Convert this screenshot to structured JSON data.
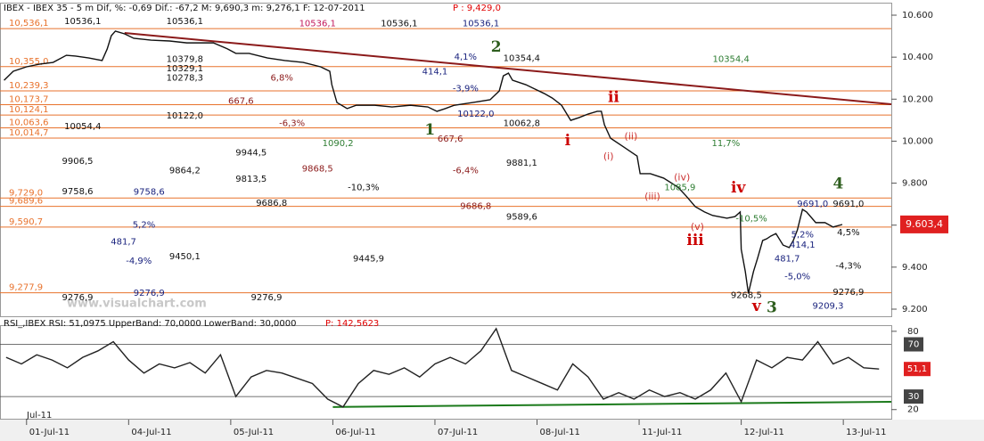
{
  "chart_data": [
    {
      "type": "line",
      "header": "IBEX - IBEX 35 -  5 m Dif, %: -0,69 Dif.: -67,2 M: 9,690,3 m: 9,276,1 F: 12-07-2011",
      "header_price": "P : 9,429,0",
      "watermark": "www.visualchart.com",
      "month_label": "Jul-11",
      "xlim": [
        -0.26,
        8.47
      ],
      "xticks": [
        {
          "value": 0,
          "label": "01-Jul-11"
        },
        {
          "value": 1,
          "label": "04-Jul-11"
        },
        {
          "value": 2,
          "label": "05-Jul-11"
        },
        {
          "value": 3,
          "label": "06-Jul-11"
        },
        {
          "value": 4,
          "label": "07-Jul-11"
        },
        {
          "value": 5,
          "label": "08-Jul-11"
        },
        {
          "value": 6,
          "label": "11-Jul-11"
        },
        {
          "value": 7,
          "label": "12-Jul-11"
        },
        {
          "value": 8,
          "label": "13-Jul-11"
        }
      ],
      "ylim": [
        9166,
        10651
      ],
      "yticks": [
        {
          "value": 9200,
          "label": "9.200"
        },
        {
          "value": 9400,
          "label": "9.400"
        },
        {
          "value": 9600,
          "label": "9.600"
        },
        {
          "value": 9800,
          "label": "9.800"
        },
        {
          "value": 10000,
          "label": "10.000"
        },
        {
          "value": 10200,
          "label": "10.200"
        },
        {
          "value": 10400,
          "label": "10.400"
        },
        {
          "value": 10600,
          "label": "10.600"
        }
      ],
      "series": [
        {
          "color": "#111111",
          "x": [
            -0.22,
            -0.13,
            0,
            0.13,
            0.26,
            0.39,
            0.48,
            0.61,
            0.74,
            0.79,
            0.83,
            0.87,
            0.96,
            1.05,
            1.22,
            1.4,
            1.57,
            1.83,
            1.97,
            2.05,
            2.18,
            2.36,
            2.53,
            2.71,
            2.88,
            2.97,
            2.99,
            3.04,
            3.14,
            3.23,
            3.41,
            3.58,
            3.76,
            3.93,
            4.02,
            4.1,
            4.19,
            4.37,
            4.54,
            4.63,
            4.67,
            4.72,
            4.76,
            4.89,
            4.98,
            5.07,
            5.15,
            5.24,
            5.33,
            5.41,
            5.5,
            5.59,
            5.63,
            5.66,
            5.72,
            5.85,
            5.94,
            5.98,
            6.01,
            6.11,
            6.24,
            6.38,
            6.46,
            6.55,
            6.64,
            6.72,
            6.86,
            6.94,
            6.99,
            7.0,
            7.04,
            7.07,
            7.12,
            7.16,
            7.21,
            7.25,
            7.29,
            7.34,
            7.41,
            7.47,
            7.51,
            7.55,
            7.6,
            7.64,
            7.73,
            7.82,
            7.9,
            7.99
          ],
          "values": [
            10290,
            10333,
            10354,
            10367,
            10375,
            10409,
            10405,
            10396,
            10384,
            10439,
            10502,
            10524,
            10511,
            10490,
            10481,
            10477,
            10468,
            10468,
            10439,
            10418,
            10418,
            10396,
            10384,
            10375,
            10354,
            10333,
            10269,
            10184,
            10155,
            10171,
            10171,
            10163,
            10171,
            10163,
            10142,
            10155,
            10171,
            10184,
            10197,
            10239,
            10311,
            10324,
            10290,
            10269,
            10248,
            10227,
            10205,
            10171,
            10099,
            10112,
            10129,
            10142,
            10142,
            10078,
            10014,
            9972,
            9942,
            9929,
            9845,
            9845,
            9824,
            9781,
            9739,
            9688,
            9663,
            9646,
            9633,
            9641,
            9663,
            9485,
            9379,
            9275,
            9379,
            9442,
            9527,
            9535,
            9548,
            9560,
            9505,
            9493,
            9527,
            9577,
            9675,
            9663,
            9612,
            9612,
            9591,
            9603
          ]
        }
      ],
      "last_price": {
        "value": 9603.4,
        "label": "9.603,4"
      },
      "levels": [
        {
          "value": 10536.1,
          "label": "10,536,1"
        },
        {
          "value": 10355.0,
          "label": "10,355,0"
        },
        {
          "value": 10239.3,
          "label": "10,239,3"
        },
        {
          "value": 10173.7,
          "label": "10,173,7"
        },
        {
          "value": 10124.1,
          "label": "10,124,1"
        },
        {
          "value": 10063.6,
          "label": "10,063,6"
        },
        {
          "value": 10014.7,
          "label": "10,014,7"
        },
        {
          "value": 9729.0,
          "label": "9,729,0"
        },
        {
          "value": 9689.6,
          "label": "9,689,6"
        },
        {
          "value": 9590.7,
          "label": "9,590,7"
        },
        {
          "value": 9277.9,
          "label": "9,277,9"
        }
      ],
      "level_color": "#e8722c",
      "trendline": {
        "x": [
          0.96,
          8.47
        ],
        "values": [
          10515,
          10176
        ],
        "color": "#8b1a1a"
      },
      "annotations": [
        {
          "text": "10536,1",
          "x": 0.55,
          "y": 10570,
          "color": "#111"
        },
        {
          "text": "10536,1",
          "x": 1.55,
          "y": 10570,
          "color": "#111"
        },
        {
          "text": "10379,8",
          "x": 1.55,
          "y": 10390,
          "color": "#111"
        },
        {
          "text": "10329,1",
          "x": 1.55,
          "y": 10345,
          "color": "#111"
        },
        {
          "text": "10278,3",
          "x": 1.55,
          "y": 10300,
          "color": "#111"
        },
        {
          "text": "10122,0",
          "x": 1.55,
          "y": 10120,
          "color": "#111"
        },
        {
          "text": "10054,4",
          "x": 0.55,
          "y": 10070,
          "color": "#111"
        },
        {
          "text": "9906,5",
          "x": 0.5,
          "y": 9905,
          "color": "#111"
        },
        {
          "text": "9758,6",
          "x": 0.5,
          "y": 9760,
          "color": "#111"
        },
        {
          "text": "9276,9",
          "x": 0.5,
          "y": 9255,
          "color": "#111"
        },
        {
          "text": "9276,9",
          "x": 2.35,
          "y": 9255,
          "color": "#111"
        },
        {
          "text": "9450,1",
          "x": 1.55,
          "y": 9450,
          "color": "#111"
        },
        {
          "text": "9864,2",
          "x": 1.55,
          "y": 9860,
          "color": "#111"
        },
        {
          "text": "667,6",
          "x": 2.1,
          "y": 10190,
          "color": "#8b1a1a"
        },
        {
          "text": "9944,5",
          "x": 2.2,
          "y": 9945,
          "color": "#111"
        },
        {
          "text": "9813,5",
          "x": 2.2,
          "y": 9820,
          "color": "#111"
        },
        {
          "text": "9686,8",
          "x": 2.4,
          "y": 9705,
          "color": "#111"
        },
        {
          "text": "-10,3%",
          "x": 3.3,
          "y": 9780,
          "color": "#111"
        },
        {
          "text": "9445,9",
          "x": 3.35,
          "y": 9440,
          "color": "#111"
        },
        {
          "text": "1090,2",
          "x": 3.05,
          "y": 9990,
          "color": "#2e7d32"
        },
        {
          "text": "6,8%",
          "x": 2.5,
          "y": 10300,
          "color": "#8b1a1a"
        },
        {
          "text": "-6,3%",
          "x": 2.6,
          "y": 10085,
          "color": "#8b1a1a"
        },
        {
          "text": "10536,1",
          "x": 2.85,
          "y": 10560,
          "color": "#c2185b"
        },
        {
          "text": "9868,5",
          "x": 2.85,
          "y": 9868,
          "color": "#8b1a1a"
        },
        {
          "text": "10536,1",
          "x": 3.65,
          "y": 10560,
          "color": "#111"
        },
        {
          "text": "414,1",
          "x": 4.0,
          "y": 10330,
          "color": "#1a237e"
        },
        {
          "text": "4,1%",
          "x": 4.3,
          "y": 10400,
          "color": "#1a237e"
        },
        {
          "text": "-3,9%",
          "x": 4.3,
          "y": 10250,
          "color": "#1a237e"
        },
        {
          "text": "10536,1",
          "x": 4.45,
          "y": 10560,
          "color": "#1a237e"
        },
        {
          "text": "10122,0",
          "x": 4.4,
          "y": 10130,
          "color": "#1a237e"
        },
        {
          "text": "10354,4",
          "x": 4.85,
          "y": 10395,
          "color": "#111"
        },
        {
          "text": "667,6",
          "x": 4.15,
          "y": 10010,
          "color": "#8b1a1a"
        },
        {
          "text": "10062,8",
          "x": 4.85,
          "y": 10085,
          "color": "#111"
        },
        {
          "text": "9881,1",
          "x": 4.85,
          "y": 9895,
          "color": "#111"
        },
        {
          "text": "-6,4%",
          "x": 4.3,
          "y": 9860,
          "color": "#8b1a1a"
        },
        {
          "text": "9686,8",
          "x": 4.4,
          "y": 9690,
          "color": "#8b1a1a"
        },
        {
          "text": "9589,6",
          "x": 4.85,
          "y": 9640,
          "color": "#111"
        },
        {
          "text": "481,7",
          "x": 0.95,
          "y": 9520,
          "color": "#1a237e"
        },
        {
          "text": "5,2%",
          "x": 1.15,
          "y": 9600,
          "color": "#1a237e"
        },
        {
          "text": "-4,9%",
          "x": 1.1,
          "y": 9430,
          "color": "#1a237e"
        },
        {
          "text": "9758,6",
          "x": 1.2,
          "y": 9758,
          "color": "#1a237e"
        },
        {
          "text": "9276,9",
          "x": 1.2,
          "y": 9277,
          "color": "#1a237e"
        },
        {
          "text": "10354,4",
          "x": 6.9,
          "y": 10390,
          "color": "#2e7d32"
        },
        {
          "text": "11,7%",
          "x": 6.85,
          "y": 9990,
          "color": "#2e7d32"
        },
        {
          "text": "1085,9",
          "x": 6.4,
          "y": 9780,
          "color": "#2e7d32"
        },
        {
          "text": "-10,5%",
          "x": 7.1,
          "y": 9630,
          "color": "#2e7d32"
        },
        {
          "text": "481,7",
          "x": 7.45,
          "y": 9440,
          "color": "#1a237e"
        },
        {
          "text": "9268,5",
          "x": 7.05,
          "y": 9265,
          "color": "#111"
        },
        {
          "text": "9691,0",
          "x": 7.7,
          "y": 9700,
          "color": "#1a237e"
        },
        {
          "text": "9691,0",
          "x": 8.05,
          "y": 9700,
          "color": "#111"
        },
        {
          "text": "5,2%",
          "x": 7.6,
          "y": 9555,
          "color": "#1a237e"
        },
        {
          "text": "414,1",
          "x": 7.6,
          "y": 9505,
          "color": "#1a237e"
        },
        {
          "text": "4,5%",
          "x": 8.05,
          "y": 9565,
          "color": "#111"
        },
        {
          "text": "-4,3%",
          "x": 8.05,
          "y": 9405,
          "color": "#111"
        },
        {
          "text": "-5,0%",
          "x": 7.55,
          "y": 9355,
          "color": "#1a237e"
        },
        {
          "text": "9209,3",
          "x": 7.85,
          "y": 9215,
          "color": "#1a237e"
        },
        {
          "text": "9276,9",
          "x": 8.05,
          "y": 9280,
          "color": "#111"
        }
      ],
      "waves": [
        {
          "text": "1",
          "x": 3.95,
          "y": 10050,
          "color": "#2e5e1e"
        },
        {
          "text": "2",
          "x": 4.6,
          "y": 10445,
          "color": "#2e5e1e"
        },
        {
          "text": "3",
          "x": 7.3,
          "y": 9205,
          "color": "#2e5e1e"
        },
        {
          "text": "4",
          "x": 7.95,
          "y": 9795,
          "color": "#2e5e1e"
        },
        {
          "text": "i",
          "x": 5.3,
          "y": 10000,
          "color": "#cc0000"
        },
        {
          "text": "ii",
          "x": 5.75,
          "y": 10205,
          "color": "#cc0000"
        },
        {
          "text": "iii",
          "x": 6.55,
          "y": 9525,
          "color": "#cc0000"
        },
        {
          "text": "iv",
          "x": 6.97,
          "y": 9775,
          "color": "#cc0000"
        },
        {
          "text": "v",
          "x": 7.15,
          "y": 9210,
          "color": "#cc0000"
        }
      ],
      "subwaves": [
        {
          "text": "(i)",
          "x": 5.7,
          "y": 9925,
          "color": "#cc3333"
        },
        {
          "text": "(ii)",
          "x": 5.92,
          "y": 10020,
          "color": "#cc3333"
        },
        {
          "text": "(iii)",
          "x": 6.13,
          "y": 9735,
          "color": "#cc3333"
        },
        {
          "text": "(iv)",
          "x": 6.42,
          "y": 9825,
          "color": "#cc3333"
        },
        {
          "text": "(v)",
          "x": 6.57,
          "y": 9590,
          "color": "#cc3333"
        }
      ]
    },
    {
      "type": "line",
      "header": "RSI_,IBEX RSI: 51,0975 UpperBand: 70,0000 LowerBand: 30,0000",
      "header_price": "P: 142,5623",
      "ylim": [
        13,
        84
      ],
      "yticks": [
        20,
        80
      ],
      "bands": [
        70,
        30
      ],
      "last_value": {
        "value": 51.1,
        "label": "51,1"
      },
      "series": [
        {
          "color": "#222222",
          "x": [
            -0.2,
            -0.05,
            0.1,
            0.25,
            0.4,
            0.55,
            0.7,
            0.85,
            1.0,
            1.15,
            1.3,
            1.45,
            1.6,
            1.75,
            1.9,
            2.05,
            2.2,
            2.35,
            2.5,
            2.65,
            2.8,
            2.95,
            3.1,
            3.25,
            3.4,
            3.55,
            3.7,
            3.85,
            4.0,
            4.15,
            4.3,
            4.45,
            4.6,
            4.75,
            4.9,
            5.05,
            5.2,
            5.35,
            5.5,
            5.65,
            5.8,
            5.95,
            6.1,
            6.25,
            6.4,
            6.55,
            6.7,
            6.85,
            7.0,
            7.15,
            7.3,
            7.45,
            7.6,
            7.75,
            7.9,
            8.05,
            8.2,
            8.35
          ],
          "values": [
            60,
            55,
            62,
            58,
            52,
            60,
            65,
            72,
            58,
            48,
            55,
            52,
            56,
            48,
            62,
            30,
            45,
            50,
            48,
            44,
            40,
            28,
            22,
            40,
            50,
            47,
            52,
            45,
            55,
            60,
            55,
            65,
            82,
            50,
            45,
            40,
            35,
            55,
            45,
            28,
            33,
            28,
            35,
            30,
            33,
            28,
            35,
            48,
            26,
            58,
            52,
            60,
            58,
            72,
            55,
            60,
            52,
            51.1
          ]
        }
      ],
      "support": {
        "x": [
          3.0,
          8.47
        ],
        "values": [
          22,
          26
        ],
        "color": "#1b7a1b"
      }
    }
  ]
}
